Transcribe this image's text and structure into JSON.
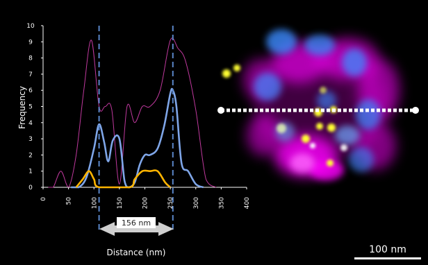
{
  "chart_data": {
    "type": "line",
    "xlabel": "Distance (nm)",
    "ylabel": "Frequency",
    "xlim": [
      0,
      400
    ],
    "ylim": [
      0,
      10
    ],
    "x_ticks": [
      "0",
      "50",
      "100",
      "150",
      "200",
      "250",
      "300",
      "350",
      "400"
    ],
    "y_ticks": [
      "0",
      "1",
      "2",
      "3",
      "4",
      "5",
      "6",
      "7",
      "8",
      "9",
      "10"
    ],
    "grid": false,
    "legend": "none",
    "series": [
      {
        "color": "#c0399e",
        "x": [
          10,
          20,
          35,
          50,
          65,
          80,
          95,
          110,
          122,
          135,
          150,
          165,
          180,
          195,
          210,
          230,
          250,
          265,
          280,
          300,
          320,
          340
        ],
        "y": [
          0,
          0,
          1,
          0,
          2,
          6,
          9.1,
          5,
          5,
          4.8,
          0.2,
          5,
          4,
          5,
          5,
          6,
          9.1,
          8.6,
          7.8,
          4.8,
          0.5,
          0
        ]
      },
      {
        "color": "#7fa6e8",
        "x": [
          55,
          70,
          85,
          100,
          110,
          120,
          128,
          137,
          150,
          160,
          168,
          180,
          190,
          200,
          210,
          225,
          238,
          250,
          255,
          262,
          272,
          285,
          300,
          315
        ],
        "y": [
          0,
          0,
          0.6,
          2.4,
          3.9,
          2.8,
          1.6,
          2.9,
          3.0,
          0.4,
          0,
          0.3,
          1.4,
          2.0,
          2.0,
          2.4,
          3.8,
          5.8,
          6.0,
          5.0,
          1.5,
          1.0,
          0.2,
          0
        ]
      },
      {
        "color": "#ffb400",
        "x": [
          65,
          78,
          90,
          100,
          110,
          170,
          180,
          195,
          210,
          225,
          240,
          250
        ],
        "y": [
          0,
          0.5,
          1.0,
          0.5,
          0,
          0,
          0.5,
          1.0,
          1.0,
          1.0,
          0.3,
          0
        ]
      }
    ],
    "reference_lines_x": [
      110,
      255
    ],
    "annotation": "156 nm"
  },
  "scale_bar": {
    "label": "100 nm"
  },
  "colors": {
    "background": "#000000",
    "magenta": "#ff00ff",
    "cyan_blue": "#3a8cff",
    "yellow": "#ffff33",
    "dashed_blue": "#5a86c8",
    "arrow": "#cfcfcf"
  }
}
